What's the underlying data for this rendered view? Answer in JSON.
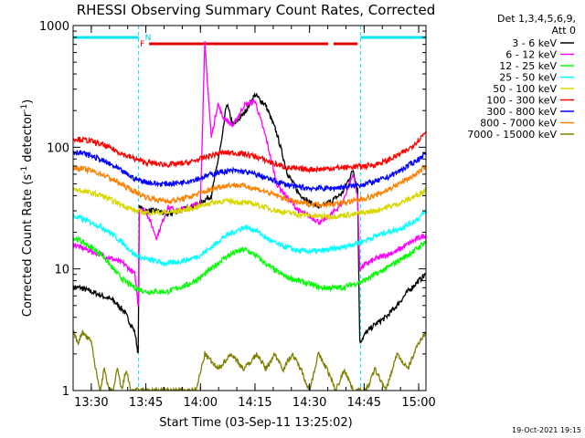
{
  "chart_data": {
    "type": "line",
    "title": "RHESSI Observing Summary Count Rates, Corrected",
    "xlabel": "Start Time (03-Sep-11 13:25:02)",
    "ylabel": "Corrected Count Rate (s",
    "ylabel_sup1": "-1",
    "ylabel_mid": " detector",
    "ylabel_sup2": "-1",
    "ylabel_end": ")",
    "y_scale": "log",
    "ylim": [
      1,
      1000
    ],
    "xlim": [
      13.4167,
      15.0333
    ],
    "y_ticks": [
      {
        "value": 1,
        "label": "1"
      },
      {
        "value": 10,
        "label": "10"
      },
      {
        "value": 100,
        "label": "100"
      },
      {
        "value": 1000,
        "label": "1000"
      }
    ],
    "x_ticks": [
      {
        "value": 13.5,
        "label": "13:30"
      },
      {
        "value": 13.75,
        "label": "13:45"
      },
      {
        "value": 14.0,
        "label": "14:00"
      },
      {
        "value": 14.25,
        "label": "14:15"
      },
      {
        "value": 14.5,
        "label": "14:30"
      },
      {
        "value": 14.75,
        "label": "14:45"
      },
      {
        "value": 15.0,
        "label": "15:00"
      }
    ],
    "legend_header": [
      "Det 1,3,4,5,6,9,",
      "Att 0"
    ],
    "legend_position": "top-right, outside plot",
    "timestamp": "19-Oct-2021 19:15",
    "flag_labels": {
      "night": "N",
      "flare": "F"
    },
    "night_intervals": [
      [
        13.4167,
        13.7167
      ],
      [
        14.7333,
        15.0333
      ]
    ],
    "flare_intervals": [
      [
        13.765,
        14.585
      ],
      [
        14.61,
        14.72
      ]
    ],
    "series": [
      {
        "name": "3 - 6 keV",
        "color": "#000000",
        "x": [
          13.417,
          13.45,
          13.5,
          13.55,
          13.6,
          13.65,
          13.7,
          13.715,
          13.72,
          13.75,
          13.8,
          13.85,
          13.9,
          13.95,
          14.0,
          14.05,
          14.1,
          14.12,
          14.15,
          14.2,
          14.25,
          14.3,
          14.35,
          14.4,
          14.45,
          14.5,
          14.55,
          14.6,
          14.65,
          14.7,
          14.72,
          14.73,
          14.76,
          14.8,
          14.85,
          14.9,
          14.95,
          15.0,
          15.033
        ],
        "y": [
          7,
          7,
          6.5,
          6,
          5.5,
          4.5,
          3,
          2,
          32,
          30,
          30,
          28,
          30,
          32,
          35,
          40,
          120,
          230,
          150,
          190,
          270,
          220,
          130,
          60,
          42,
          35,
          32,
          36,
          42,
          65,
          45,
          2.5,
          3,
          3.5,
          4,
          5,
          6.5,
          8,
          9
        ]
      },
      {
        "name": "6 - 12 keV",
        "color": "#ff00ff",
        "x": [
          13.417,
          13.45,
          13.5,
          13.55,
          13.6,
          13.65,
          13.7,
          13.715,
          13.72,
          13.75,
          13.8,
          13.85,
          13.9,
          13.95,
          14.0,
          14.02,
          14.05,
          14.08,
          14.1,
          14.15,
          14.2,
          14.25,
          14.3,
          14.35,
          14.4,
          14.45,
          14.5,
          14.55,
          14.6,
          14.65,
          14.7,
          14.72,
          14.73,
          14.76,
          14.8,
          14.85,
          14.9,
          14.95,
          15.0,
          15.033
        ],
        "y": [
          16,
          15,
          14,
          13,
          12,
          11,
          9,
          5,
          32,
          30,
          18,
          32,
          30,
          32,
          35,
          720,
          120,
          230,
          180,
          150,
          220,
          240,
          120,
          50,
          38,
          30,
          27,
          24,
          28,
          35,
          60,
          40,
          10,
          11,
          12,
          13,
          14,
          16,
          18,
          19
        ]
      },
      {
        "name": "12 - 25 keV",
        "color": "#00ff00",
        "x": [
          13.417,
          13.45,
          13.5,
          13.55,
          13.6,
          13.65,
          13.7,
          13.75,
          13.8,
          13.85,
          13.9,
          13.95,
          14.0,
          14.05,
          14.1,
          14.15,
          14.2,
          14.25,
          14.3,
          14.35,
          14.4,
          14.45,
          14.5,
          14.55,
          14.6,
          14.65,
          14.7,
          14.75,
          14.8,
          14.85,
          14.9,
          14.95,
          15.0,
          15.033
        ],
        "y": [
          18,
          17,
          15,
          13,
          10,
          8,
          7,
          6.5,
          6.5,
          6.5,
          7,
          7.5,
          8.5,
          10,
          12,
          13.5,
          14.5,
          13,
          11,
          9.5,
          8.5,
          8,
          7.5,
          7,
          7,
          7,
          7.5,
          8,
          9,
          10,
          11.5,
          13,
          15,
          17
        ]
      },
      {
        "name": "25 - 50 keV",
        "color": "#00ffff",
        "x": [
          13.417,
          13.45,
          13.5,
          13.55,
          13.6,
          13.65,
          13.7,
          13.75,
          13.8,
          13.85,
          13.9,
          13.95,
          14.0,
          14.05,
          14.1,
          14.15,
          14.2,
          14.25,
          14.3,
          14.35,
          14.4,
          14.45,
          14.5,
          14.55,
          14.6,
          14.65,
          14.7,
          14.75,
          14.8,
          14.85,
          14.9,
          14.95,
          15.0,
          15.033
        ],
        "y": [
          27,
          26,
          24,
          22,
          19,
          16,
          13,
          12,
          11.5,
          11,
          11.5,
          12,
          13,
          15,
          18,
          20,
          22,
          21,
          18,
          16,
          15,
          14,
          14,
          14,
          14.5,
          15,
          16,
          17,
          18.5,
          20,
          21,
          23,
          26,
          30
        ]
      },
      {
        "name": "50 - 100 keV",
        "color": "#d8d800",
        "x": [
          13.417,
          13.45,
          13.5,
          13.55,
          13.6,
          13.65,
          13.7,
          13.75,
          13.8,
          13.85,
          13.9,
          13.95,
          14.0,
          14.05,
          14.1,
          14.15,
          14.2,
          14.25,
          14.3,
          14.35,
          14.4,
          14.45,
          14.5,
          14.55,
          14.6,
          14.65,
          14.7,
          14.75,
          14.8,
          14.85,
          14.9,
          14.95,
          15.0,
          15.033
        ],
        "y": [
          45,
          44,
          42,
          40,
          36,
          33,
          30,
          29,
          29,
          29,
          30,
          31,
          33,
          35,
          36,
          36,
          35,
          34,
          32,
          30,
          29,
          28,
          27.5,
          27,
          27,
          27.5,
          28,
          29,
          30,
          32,
          34,
          37,
          41,
          45
        ]
      },
      {
        "name": "100 - 300 keV",
        "color": "#ff0000",
        "x": [
          13.417,
          13.45,
          13.5,
          13.55,
          13.6,
          13.65,
          13.7,
          13.75,
          13.8,
          13.85,
          13.9,
          13.95,
          14.0,
          14.05,
          14.1,
          14.15,
          14.2,
          14.25,
          14.3,
          14.35,
          14.4,
          14.45,
          14.5,
          14.55,
          14.6,
          14.65,
          14.7,
          14.75,
          14.8,
          14.85,
          14.9,
          14.95,
          15.0,
          15.033
        ],
        "y": [
          118,
          116,
          112,
          105,
          96,
          87,
          80,
          75,
          73,
          72,
          73,
          75,
          80,
          86,
          90,
          90,
          88,
          84,
          78,
          72,
          68,
          66,
          66,
          66,
          67,
          68,
          69,
          70,
          72,
          77,
          85,
          95,
          115,
          135
        ]
      },
      {
        "name": "300 - 800 keV",
        "color": "#0000ff",
        "x": [
          13.417,
          13.45,
          13.5,
          13.55,
          13.6,
          13.65,
          13.7,
          13.75,
          13.8,
          13.85,
          13.9,
          13.95,
          14.0,
          14.05,
          14.1,
          14.15,
          14.2,
          14.25,
          14.3,
          14.35,
          14.4,
          14.45,
          14.5,
          14.55,
          14.6,
          14.65,
          14.7,
          14.75,
          14.8,
          14.85,
          14.9,
          14.95,
          15.0,
          15.033
        ],
        "y": [
          92,
          90,
          85,
          78,
          70,
          62,
          55,
          52,
          50,
          50,
          51,
          53,
          56,
          60,
          63,
          64,
          63,
          60,
          56,
          52,
          49,
          47,
          46,
          46,
          46,
          47,
          48,
          50,
          52,
          56,
          62,
          70,
          80,
          90
        ]
      },
      {
        "name": "800 - 7000 keV",
        "color": "#ff8000",
        "x": [
          13.417,
          13.45,
          13.5,
          13.55,
          13.6,
          13.65,
          13.7,
          13.75,
          13.8,
          13.85,
          13.9,
          13.95,
          14.0,
          14.05,
          14.1,
          14.15,
          14.2,
          14.25,
          14.3,
          14.35,
          14.4,
          14.45,
          14.5,
          14.55,
          14.6,
          14.65,
          14.7,
          14.75,
          14.8,
          14.85,
          14.9,
          14.95,
          15.0,
          15.033
        ],
        "y": [
          68,
          67,
          64,
          60,
          54,
          48,
          43,
          39,
          37,
          36,
          37,
          39,
          42,
          45,
          48,
          49,
          48,
          46,
          43,
          40,
          37,
          35,
          34,
          34,
          34,
          35,
          36,
          38,
          40,
          44,
          49,
          55,
          62,
          70
        ]
      },
      {
        "name": "7000 - 15000 keV",
        "color": "#808000",
        "x": [
          13.417,
          13.44,
          13.46,
          13.5,
          13.52,
          13.54,
          13.56,
          13.58,
          13.6,
          13.62,
          13.64,
          13.66,
          13.68,
          13.7,
          13.72,
          13.98,
          14.02,
          14.08,
          14.14,
          14.2,
          14.26,
          14.3,
          14.34,
          14.38,
          14.42,
          14.46,
          14.5,
          14.54,
          14.58,
          14.62,
          14.66,
          14.7,
          14.73,
          14.76,
          14.8,
          14.85,
          14.9,
          14.95,
          15.0,
          15.033
        ],
        "y": [
          3,
          2.5,
          3,
          2.5,
          1.5,
          1,
          1.5,
          1,
          1,
          1.5,
          1,
          1.5,
          1,
          1,
          1,
          1,
          2,
          1.5,
          2,
          1.5,
          2,
          1.5,
          2,
          1.5,
          2,
          1.5,
          1,
          2,
          1.5,
          1,
          1.5,
          1,
          1,
          1,
          1.5,
          1,
          2,
          1.5,
          2.5,
          3
        ]
      }
    ]
  }
}
